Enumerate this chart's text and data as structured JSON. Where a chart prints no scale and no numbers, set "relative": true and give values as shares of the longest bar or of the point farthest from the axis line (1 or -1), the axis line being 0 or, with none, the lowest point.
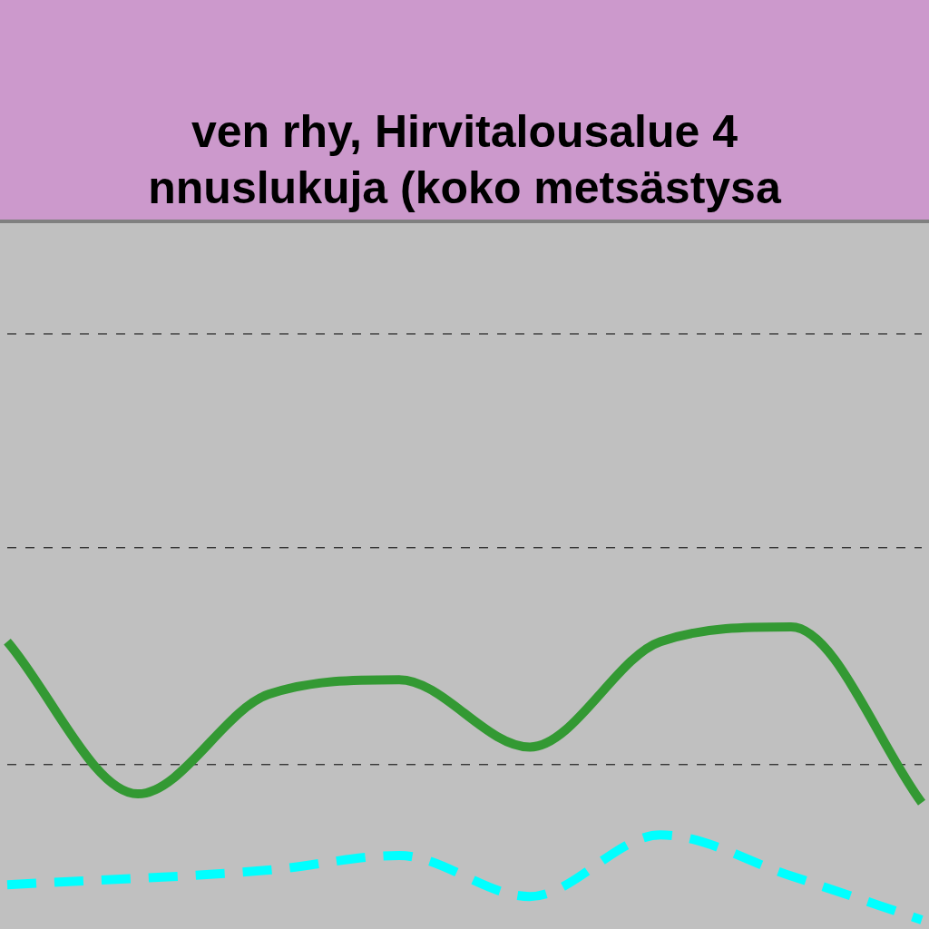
{
  "chart_data": {
    "type": "line",
    "title": "ven rhy,  Hirvitalousalue 4\nnnuslukuja (koko metsästysa",
    "relative": true,
    "categories": [
      null,
      null,
      null,
      null,
      null,
      null,
      null,
      null
    ],
    "series": [
      {
        "color": "#339933",
        "values": [
          0.95,
          0.43,
          0.77,
          0.82,
          0.59,
          0.95,
          1,
          0.4
        ]
      },
      {
        "color": "#00ffff",
        "line_style": "dashed",
        "values": [
          0.12,
          null,
          0.17,
          0.22,
          0.08,
          0.29,
          0.15,
          0
        ]
      }
    ],
    "ref_lines": [
      {
        "axis": "y",
        "value": 0.53,
        "color": "#000000",
        "line_style": "dashed"
      },
      {
        "axis": "y",
        "value": 1.27,
        "color": "#000000",
        "line_style": "dashed"
      },
      {
        "axis": "y",
        "value": 2.0,
        "color": "#000000",
        "line_style": "dashed"
      }
    ],
    "legend": false,
    "marker": "none"
  }
}
